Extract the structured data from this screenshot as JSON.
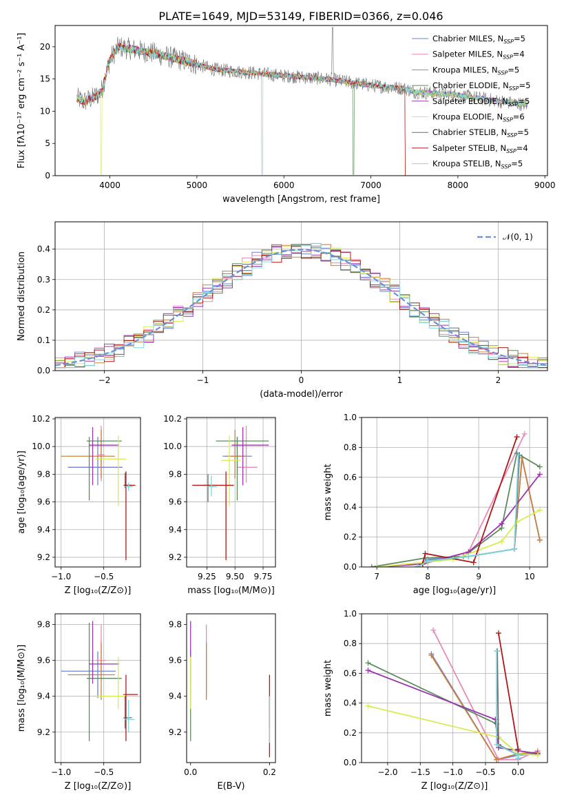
{
  "figure_title": "PLATE=1649, MJD=53149, FIBERID=0366, z=0.046",
  "series": [
    {
      "name": "Chabrier MILES",
      "n": "5",
      "color": "#6b7fd8"
    },
    {
      "name": "Salpeter MILES",
      "n": "4",
      "color": "#e889b8"
    },
    {
      "name": "Kroupa MILES",
      "n": "5",
      "color": "#c9803a"
    },
    {
      "name": "Chabrier ELODIE",
      "n": "5",
      "color": "#5c8a5c"
    },
    {
      "name": "Salpeter ELODIE",
      "n": "5",
      "color": "#9a34ad"
    },
    {
      "name": "Kroupa ELODIE",
      "n": "6",
      "color": "#d8ec52"
    },
    {
      "name": "Chabrier STELIB",
      "n": "5",
      "color": "#6b6b6b"
    },
    {
      "name": "Salpeter STELIB",
      "n": "4",
      "color": "#b01515"
    },
    {
      "name": "Kroupa STELIB",
      "n": "5",
      "color": "#7fd6dc"
    }
  ],
  "chart_data": [
    {
      "id": "spectrum",
      "type": "line",
      "xlabel": "wavelength [Angstrom, rest frame]",
      "ylabel": "Flux [fλ10⁻¹⁷ erg cm⁻² s⁻¹ A⁻¹]",
      "xlim": [
        3370,
        9030
      ],
      "ylim": [
        0,
        23.3
      ],
      "xticks": [
        4000,
        5000,
        6000,
        7000,
        8000,
        9000
      ],
      "yticks": [
        0,
        5,
        10,
        15,
        20
      ],
      "grid": false,
      "legend": "top-right",
      "continuum": {
        "x": [
          3620,
          3700,
          3800,
          3900,
          4000,
          4100,
          4300,
          4500,
          4800,
          5200,
          5600,
          6000,
          6500,
          7000,
          7400,
          7500,
          8000,
          8500,
          8800
        ],
        "y": [
          12,
          11.5,
          12,
          13,
          18,
          20,
          19.5,
          19,
          18,
          16.5,
          16,
          15.5,
          15,
          14,
          13.5,
          13,
          12.5,
          11.5,
          11
        ]
      }
    },
    {
      "id": "residuals",
      "type": "histogram",
      "xlabel": "(data-model)/error",
      "ylabel": "Normed distribution",
      "xlim": [
        -2.5,
        2.5
      ],
      "ylim": [
        0,
        0.49
      ],
      "xticks": [
        -2,
        -1,
        0,
        1,
        2
      ],
      "yticks": [
        0,
        0.1,
        0.2,
        0.3,
        0.4
      ],
      "grid": true,
      "legend": "top-right",
      "reference_curve": "𝒩(0, 1)"
    },
    {
      "id": "age_vs_Z",
      "type": "errorbar",
      "xlabel": "Z [log₁₀(Z/Z⊙)]",
      "ylabel": "age  [log₁₀(age/yr)]",
      "xlim": [
        -1.07,
        -0.07
      ],
      "ylim": [
        9.13,
        10.21
      ],
      "xticks": [
        -1.0,
        -0.5
      ],
      "yticks": [
        9.2,
        9.4,
        9.6,
        9.8,
        10.0,
        10.2
      ],
      "grid": true,
      "points": [
        {
          "x": -0.57,
          "y": 9.85,
          "xl": -0.92,
          "xh": -0.28,
          "yl": 9.72,
          "yh": 10.07
        },
        {
          "x": -0.53,
          "y": 9.94,
          "xl": -0.58,
          "xh": -0.49,
          "yl": 9.75,
          "yh": 10.15
        },
        {
          "x": -0.53,
          "y": 9.93,
          "xl": -1.0,
          "xh": -0.37,
          "yl": 9.77,
          "yh": 10.12
        },
        {
          "x": -0.67,
          "y": 10.04,
          "xl": -0.7,
          "xh": -0.29,
          "yl": 9.61,
          "yh": 10.07
        },
        {
          "x": -0.63,
          "y": 10.01,
          "xl": -0.67,
          "xh": -0.32,
          "yl": 9.72,
          "yh": 10.14
        },
        {
          "x": -0.33,
          "y": 9.91,
          "xl": -0.6,
          "xh": -0.24,
          "yl": 9.57,
          "yh": 10.08
        },
        {
          "x": -0.25,
          "y": 9.72,
          "xl": -0.27,
          "xh": -0.17,
          "yl": 9.7,
          "yh": 9.81
        },
        {
          "x": -0.24,
          "y": 9.72,
          "xl": -0.26,
          "xh": -0.13,
          "yl": 9.18,
          "yh": 9.82
        },
        {
          "x": -0.21,
          "y": 9.71,
          "xl": -0.25,
          "xh": -0.16,
          "yl": 9.68,
          "yh": 9.74
        }
      ]
    },
    {
      "id": "age_vs_mass",
      "type": "errorbar",
      "xlabel": "mass [log₁₀(M/M⊙)]",
      "ylabel": "",
      "xlim": [
        9.07,
        9.86
      ],
      "ylim": [
        9.13,
        10.21
      ],
      "xticks": [
        9.25,
        9.5,
        9.75
      ],
      "yticks": [
        9.2,
        9.4,
        9.6,
        9.8,
        10.0,
        10.2
      ],
      "grid": true,
      "points": [
        {
          "x": 9.52,
          "y": 9.93,
          "xl": 9.39,
          "xh": 9.65,
          "yl": 9.8,
          "yh": 10.07
        },
        {
          "x": 9.6,
          "y": 9.85,
          "xl": 9.52,
          "xh": 9.7,
          "yl": 9.74,
          "yh": 10.15
        },
        {
          "x": 9.5,
          "y": 9.93,
          "xl": 9.43,
          "xh": 9.6,
          "yl": 9.77,
          "yh": 10.12
        },
        {
          "x": 9.52,
          "y": 10.04,
          "xl": 9.33,
          "xh": 9.8,
          "yl": 9.61,
          "yh": 10.07
        },
        {
          "x": 9.57,
          "y": 10.01,
          "xl": 9.47,
          "xh": 9.8,
          "yl": 9.72,
          "yh": 10.14
        },
        {
          "x": 9.45,
          "y": 9.9,
          "xl": 9.38,
          "xh": 9.55,
          "yl": 9.57,
          "yh": 10.08
        },
        {
          "x": 9.26,
          "y": 9.72,
          "xl": 9.22,
          "xh": 9.3,
          "yl": 9.6,
          "yh": 9.8
        },
        {
          "x": 9.42,
          "y": 9.72,
          "xl": 9.12,
          "xh": 9.49,
          "yl": 9.18,
          "yh": 9.82
        },
        {
          "x": 9.29,
          "y": 9.71,
          "xl": 9.25,
          "xh": 9.34,
          "yl": 9.64,
          "yh": 9.79
        }
      ]
    },
    {
      "id": "massweight_vs_age",
      "type": "line",
      "xlabel": "age  [log₁₀(age/yr)]",
      "ylabel": "mass weight",
      "xlim": [
        6.7,
        10.35
      ],
      "ylim": [
        0,
        1.0
      ],
      "xticks": [
        7,
        8,
        9,
        10
      ],
      "yticks": [
        0,
        0.2,
        0.4,
        0.6,
        0.8,
        1.0
      ],
      "grid": true,
      "lines": [
        {
          "x": [
            7.8,
            8.0,
            8.8,
            9.7,
            9.85,
            10.2
          ],
          "y": [
            0.0,
            0.05,
            0.07,
            0.12,
            0.73,
            0.18
          ]
        },
        {
          "x": [
            7.9,
            8.8,
            9.9
          ],
          "y": [
            0.02,
            0.1,
            0.89
          ]
        },
        {
          "x": [
            7.8,
            8.0,
            8.8,
            9.7,
            9.85,
            10.2
          ],
          "y": [
            0.0,
            0.04,
            0.07,
            0.12,
            0.73,
            0.18
          ]
        },
        {
          "x": [
            6.9,
            7.95,
            8.7,
            9.45,
            9.75,
            10.2
          ],
          "y": [
            0.0,
            0.06,
            0.07,
            0.26,
            0.76,
            0.67
          ]
        },
        {
          "x": [
            7.0,
            7.9,
            8.8,
            9.45,
            10.2
          ],
          "y": [
            0.0,
            0.02,
            0.1,
            0.29,
            0.62
          ]
        },
        {
          "x": [
            7.0,
            7.9,
            8.5,
            9.45,
            9.75,
            10.2
          ],
          "y": [
            0.0,
            0.03,
            0.05,
            0.17,
            0.3,
            0.38
          ]
        },
        {
          "x": [
            7.8,
            8.0,
            8.8,
            9.7,
            9.8
          ],
          "y": [
            0.0,
            0.04,
            0.07,
            0.12,
            0.75
          ]
        },
        {
          "x": [
            7.9,
            7.95,
            8.9,
            9.75
          ],
          "y": [
            0.02,
            0.09,
            0.03,
            0.87
          ]
        },
        {
          "x": [
            7.8,
            8.0,
            8.8,
            9.7,
            9.78
          ],
          "y": [
            0.0,
            0.04,
            0.07,
            0.12,
            0.75
          ]
        }
      ]
    },
    {
      "id": "mass_vs_Z",
      "type": "errorbar",
      "xlabel": "Z [log₁₀(Z/Z⊙)]",
      "ylabel": "mass [log₁₀(M/M⊙)]",
      "xlim": [
        -1.07,
        -0.07
      ],
      "ylim": [
        9.03,
        9.86
      ],
      "xticks": [
        -1.0,
        -0.5
      ],
      "yticks": [
        9.2,
        9.4,
        9.6,
        9.8
      ],
      "grid": true,
      "points": [
        {
          "x": -0.57,
          "y": 9.54,
          "xl": -1.0,
          "xh": -0.36,
          "yl": 9.39,
          "yh": 9.65
        },
        {
          "x": -0.53,
          "y": 9.6,
          "xl": -0.59,
          "xh": -0.48,
          "yl": 9.52,
          "yh": 9.8
        },
        {
          "x": -0.53,
          "y": 9.52,
          "xl": -0.92,
          "xh": -0.37,
          "yl": 9.38,
          "yh": 9.7
        },
        {
          "x": -0.67,
          "y": 9.5,
          "xl": -0.7,
          "xh": -0.29,
          "yl": 9.15,
          "yh": 9.81
        },
        {
          "x": -0.63,
          "y": 9.58,
          "xl": -0.67,
          "xh": -0.32,
          "yl": 9.47,
          "yh": 9.82
        },
        {
          "x": -0.33,
          "y": 9.4,
          "xl": -0.58,
          "xh": -0.24,
          "yl": 9.33,
          "yh": 9.62
        },
        {
          "x": -0.25,
          "y": 9.28,
          "xl": -0.27,
          "xh": -0.17,
          "yl": 9.22,
          "yh": 9.4
        },
        {
          "x": -0.24,
          "y": 9.41,
          "xl": -0.27,
          "xh": -0.1,
          "yl": 9.15,
          "yh": 9.52
        },
        {
          "x": -0.21,
          "y": 9.27,
          "xl": -0.25,
          "xh": -0.14,
          "yl": 9.2,
          "yh": 9.38
        }
      ]
    },
    {
      "id": "mass_vs_EBV",
      "type": "errorbar",
      "xlabel": "E(B-V)",
      "ylabel": "",
      "xlim": [
        -0.01,
        0.215
      ],
      "ylim": [
        9.03,
        9.86
      ],
      "xticks": [
        0.0,
        0.2
      ],
      "yticks": [
        9.2,
        9.4,
        9.6,
        9.8
      ],
      "grid": false,
      "points": [
        {
          "x": 0.0,
          "y": 9.54,
          "xl": 0.0,
          "xh": 0.0,
          "yl": 9.39,
          "yh": 9.65
        },
        {
          "x": 0.04,
          "y": 9.6,
          "xl": 0.04,
          "xh": 0.04,
          "yl": 9.4,
          "yh": 9.8
        },
        {
          "x": 0.04,
          "y": 9.52,
          "xl": 0.04,
          "xh": 0.04,
          "yl": 9.38,
          "yh": 9.7
        },
        {
          "x": 0.0,
          "y": 9.5,
          "xl": 0.0,
          "xh": 0.0,
          "yl": 9.15,
          "yh": 9.62
        },
        {
          "x": 0.0,
          "y": 9.58,
          "xl": 0.0,
          "xh": 0.0,
          "yl": 9.47,
          "yh": 9.82
        },
        {
          "x": 0.0,
          "y": 9.4,
          "xl": 0.0,
          "xh": 0.0,
          "yl": 9.33,
          "yh": 9.62
        },
        {
          "x": 0.2,
          "y": 9.28,
          "xl": 0.2,
          "xh": 0.2,
          "yl": 9.22,
          "yh": 9.4
        },
        {
          "x": 0.2,
          "y": 9.35,
          "xl": 0.2,
          "xh": 0.2,
          "yl": 9.06,
          "yh": 9.52
        },
        {
          "x": 0.2,
          "y": 9.27,
          "xl": 0.2,
          "xh": 0.2,
          "yl": 9.14,
          "yh": 9.4
        }
      ]
    },
    {
      "id": "massweight_vs_Z",
      "type": "line",
      "xlabel": "Z [log₁₀(Z/Z⊙)]",
      "ylabel": "mass weight",
      "xlim": [
        -2.4,
        0.45
      ],
      "ylim": [
        0,
        1.0
      ],
      "xticks": [
        -2.0,
        -1.5,
        -1.0,
        -0.5,
        0.0
      ],
      "yticks": [
        0,
        0.2,
        0.4,
        0.6,
        0.8,
        1.0
      ],
      "grid": true,
      "lines": [
        {
          "x": [
            -1.33,
            -0.33,
            0.0,
            0.3
          ],
          "y": [
            0.73,
            0.02,
            0.05,
            0.06
          ]
        },
        {
          "x": [
            -1.3,
            -0.3,
            0.0,
            0.3
          ],
          "y": [
            0.89,
            0.02,
            0.02,
            0.08
          ]
        },
        {
          "x": [
            -1.33,
            -0.33,
            0.0,
            0.3
          ],
          "y": [
            0.72,
            0.02,
            0.06,
            0.07
          ]
        },
        {
          "x": [
            -2.3,
            -0.33,
            -0.3,
            0.0,
            0.3
          ],
          "y": [
            0.67,
            0.26,
            0.17,
            0.06,
            0.06
          ]
        },
        {
          "x": [
            -2.3,
            -0.35,
            -0.3,
            0.3
          ],
          "y": [
            0.62,
            0.29,
            0.1,
            0.06
          ]
        },
        {
          "x": [
            -2.3,
            -0.3,
            0.0,
            0.3
          ],
          "y": [
            0.38,
            0.17,
            0.06,
            0.05
          ]
        },
        {
          "x": [
            -0.32,
            -0.3,
            0.0,
            0.0
          ],
          "y": [
            0.75,
            0.12,
            0.05,
            0.05
          ]
        },
        {
          "x": [
            -0.3,
            0.0,
            0.0
          ],
          "y": [
            0.87,
            0.09,
            0.03
          ]
        },
        {
          "x": [
            -0.33,
            -0.33,
            0.0,
            0.0
          ],
          "y": [
            0.75,
            0.12,
            0.05,
            0.03
          ]
        }
      ]
    }
  ]
}
